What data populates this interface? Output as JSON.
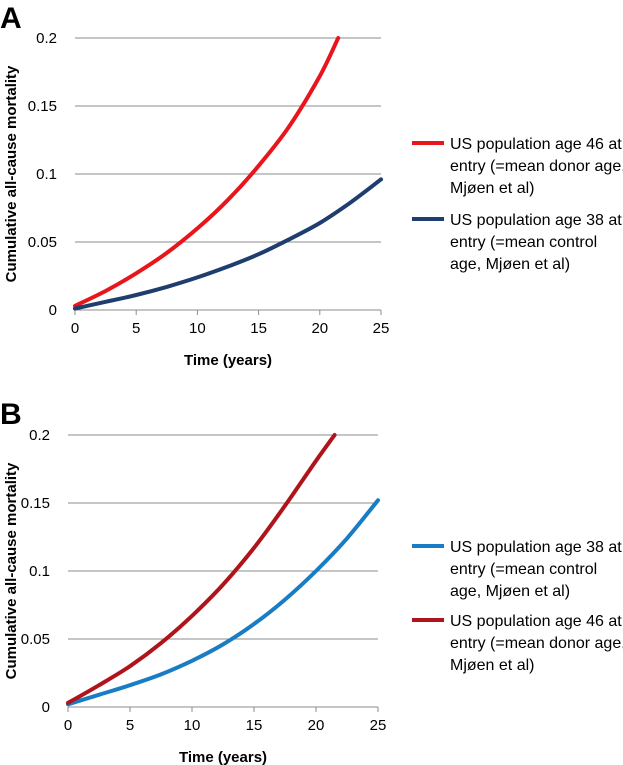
{
  "chart_data": [
    {
      "type": "line",
      "panel": "A",
      "xlabel": "Time (years)",
      "ylabel": "Cumulative all-cause mortality",
      "xlim": [
        0,
        25
      ],
      "ylim": [
        0,
        0.2
      ],
      "x_ticks": [
        "0",
        "5",
        "10",
        "15",
        "20",
        "25"
      ],
      "y_ticks": [
        "0",
        "0.05",
        "0.1",
        "0.15",
        "0.2"
      ],
      "grid": "horizontal",
      "legend": "right",
      "series": [
        {
          "name": "US population age 46 at entry (=mean donor age, Mjøen et al)",
          "legend_lines": [
            "US population age 46 at",
            "entry (=mean donor age,",
            "Mjøen et al)"
          ],
          "color": "#e8161c",
          "x": [
            0,
            2.5,
            5,
            7.5,
            10,
            12.5,
            15,
            17.5,
            20,
            21.5
          ],
          "y": [
            0.003,
            0.014,
            0.027,
            0.042,
            0.06,
            0.081,
            0.106,
            0.135,
            0.172,
            0.2
          ]
        },
        {
          "name": "US population age 38 at entry (=mean control age, Mjøen et al)",
          "legend_lines": [
            "US population age 38 at",
            "entry (=mean control",
            "age, Mjøen et al)"
          ],
          "color": "#1f3d6e",
          "x": [
            0,
            2.5,
            5,
            7.5,
            10,
            12.5,
            15,
            17.5,
            20,
            22.5,
            25
          ],
          "y": [
            0.001,
            0.006,
            0.011,
            0.017,
            0.024,
            0.032,
            0.041,
            0.052,
            0.064,
            0.079,
            0.096
          ]
        }
      ]
    },
    {
      "type": "line",
      "panel": "B",
      "xlabel": "Time (years)",
      "ylabel": "Cumulative all-cause mortality",
      "xlim": [
        0,
        25
      ],
      "ylim": [
        0,
        0.2
      ],
      "x_ticks": [
        "0",
        "5",
        "10",
        "15",
        "20",
        "25"
      ],
      "y_ticks": [
        "0",
        "0.05",
        "0.1",
        "0.15",
        "0.2"
      ],
      "grid": "horizontal",
      "legend": "right",
      "series": [
        {
          "name": "US population age 38 at entry (=mean control age, Mjøen et al)",
          "legend_lines": [
            "US population age 38 at",
            "entry (=mean control",
            "age, Mjøen et al)"
          ],
          "color": "#1a7dc4",
          "x": [
            0,
            2.5,
            5,
            7.5,
            10,
            12.5,
            15,
            17.5,
            20,
            22.5,
            25
          ],
          "y": [
            0.002,
            0.009,
            0.016,
            0.024,
            0.034,
            0.046,
            0.061,
            0.079,
            0.1,
            0.124,
            0.152
          ]
        },
        {
          "name": "US population age 46 at entry (=mean donor age, Mjøen et al)",
          "legend_lines": [
            "US population age 46 at",
            "entry (=mean donor age,",
            "Mjøen et al)"
          ],
          "color": "#b0141b",
          "x": [
            0,
            2.5,
            5,
            7.5,
            10,
            12.5,
            15,
            17.5,
            20,
            21.5
          ],
          "y": [
            0.003,
            0.016,
            0.03,
            0.047,
            0.067,
            0.09,
            0.117,
            0.148,
            0.181,
            0.2
          ]
        }
      ]
    }
  ]
}
